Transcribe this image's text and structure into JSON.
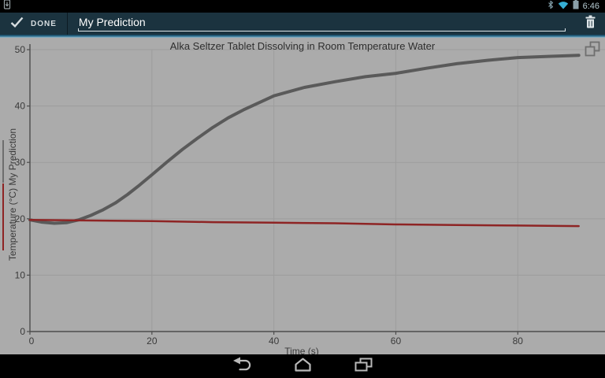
{
  "status_bar": {
    "time": "6:46",
    "icons": [
      "usb-debug-icon",
      "bluetooth-icon",
      "wifi-icon",
      "battery-icon"
    ]
  },
  "toolbar": {
    "done_label": "DONE",
    "field_value": "My Prediction",
    "icons": [
      "check-icon",
      "trash-icon"
    ]
  },
  "chart_data": {
    "type": "line",
    "title": "Alka Seltzer Tablet Dissolving in Room Temperature Water",
    "xlabel": "Time (s)",
    "ylabel": "Temperature (°C) My Prediction",
    "xlim": [
      0,
      94.3
    ],
    "ylim": [
      0,
      52.1
    ],
    "xticks": [
      0,
      20,
      40,
      60,
      80
    ],
    "yticks": [
      0,
      10,
      20,
      30,
      40,
      50
    ],
    "grid": true,
    "legend_position": "none",
    "background": "#ababab",
    "grid_color": "#9d9d9d",
    "axis_color": "#4c4c4c",
    "series": [
      {
        "name": "My Prediction",
        "color": "#5a5a5a",
        "width": 4,
        "x": [
          0,
          2,
          4,
          6,
          8,
          10,
          12,
          14,
          16,
          18,
          20,
          22.5,
          25,
          27.5,
          30,
          32.5,
          35,
          40,
          45,
          50,
          55,
          60,
          65,
          70,
          75,
          80,
          85,
          90
        ],
        "y": [
          19.8,
          19.4,
          19.2,
          19.3,
          19.8,
          20.6,
          21.6,
          22.8,
          24.3,
          26.0,
          27.8,
          30.1,
          32.3,
          34.3,
          36.2,
          37.9,
          39.3,
          41.8,
          43.3,
          44.3,
          45.2,
          45.8,
          46.7,
          47.5,
          48.1,
          48.6,
          48.8,
          49.0
        ]
      },
      {
        "name": "Temperature (°C)",
        "color": "#8e2424",
        "width": 2.5,
        "x": [
          0,
          10,
          20,
          30,
          40,
          50,
          60,
          70,
          80,
          90
        ],
        "y": [
          19.8,
          19.7,
          19.6,
          19.4,
          19.3,
          19.2,
          19.0,
          18.9,
          18.8,
          18.7
        ]
      }
    ]
  },
  "nav_bar": {
    "icons": [
      "back-icon",
      "home-icon",
      "recents-icon"
    ]
  },
  "colors": {
    "accent_blue": "#2e7092",
    "toolbar_bg": "#1b333f",
    "status_bg": "#000000",
    "wifi_blue": "#36aed3",
    "chart_bg": "#ababab",
    "prediction_gray": "#5a5a5a",
    "temperature_red": "#8e2424"
  }
}
